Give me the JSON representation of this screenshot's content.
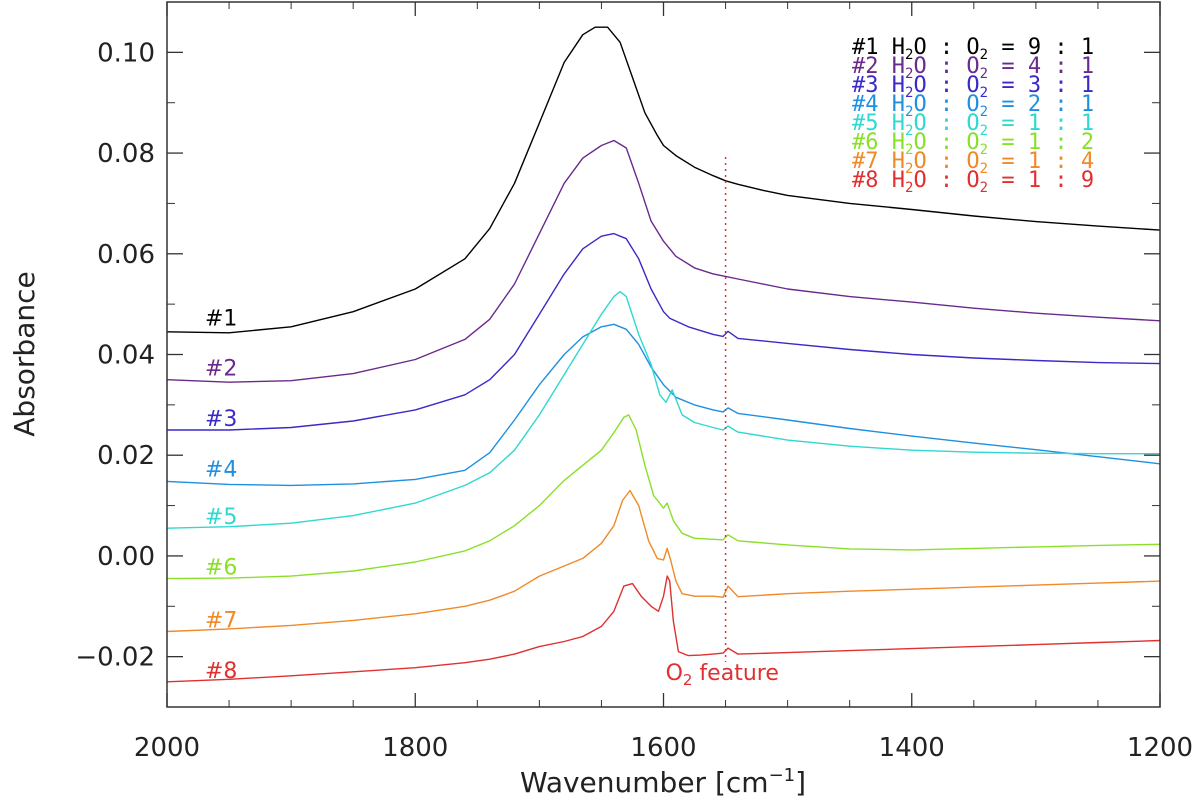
{
  "chart_data": {
    "type": "line",
    "title": "",
    "xlabel": "Wavenumber [cm",
    "xlabel_sup": "−1",
    "xlabel_close": "]",
    "ylabel": "Absorbance",
    "xlim": [
      2000,
      1200
    ],
    "ylim": [
      -0.03,
      0.11
    ],
    "xticks": [
      {
        "value": 2000,
        "label": "2000"
      },
      {
        "value": 1800,
        "label": "1800"
      },
      {
        "value": 1600,
        "label": "1600"
      },
      {
        "value": 1400,
        "label": "1400"
      },
      {
        "value": 1200,
        "label": "1200"
      }
    ],
    "yticks": [
      {
        "value": -0.02,
        "label": "−0.02"
      },
      {
        "value": 0.0,
        "label": "0.00"
      },
      {
        "value": 0.02,
        "label": "0.02"
      },
      {
        "value": 0.04,
        "label": "0.04"
      },
      {
        "value": 0.06,
        "label": "0.06"
      },
      {
        "value": 0.08,
        "label": "0.08"
      },
      {
        "value": 0.1,
        "label": "0.10"
      }
    ],
    "legend_position": "top-right",
    "annotation": {
      "text_prefix": "O",
      "text_sub": "2",
      "text_suffix": " feature",
      "x": 1550,
      "color": "#e03030"
    },
    "series": [
      {
        "name": "#1",
        "ratio_a": "9",
        "ratio_b": "1",
        "color": "#000000",
        "label_y": 0.045,
        "x": [
          2000,
          1950,
          1900,
          1850,
          1800,
          1760,
          1740,
          1720,
          1700,
          1680,
          1665,
          1655,
          1645,
          1635,
          1625,
          1615,
          1605,
          1600,
          1590,
          1575,
          1560,
          1550,
          1540,
          1520,
          1500,
          1450,
          1400,
          1350,
          1300,
          1250,
          1200
        ],
        "y": [
          0.0445,
          0.0443,
          0.0455,
          0.0485,
          0.053,
          0.059,
          0.065,
          0.074,
          0.086,
          0.098,
          0.1035,
          0.105,
          0.105,
          0.102,
          0.095,
          0.088,
          0.0835,
          0.0815,
          0.0795,
          0.0772,
          0.0755,
          0.0745,
          0.0738,
          0.0726,
          0.0716,
          0.07,
          0.0688,
          0.0675,
          0.0664,
          0.0655,
          0.0647
        ]
      },
      {
        "name": "#2",
        "ratio_a": "4",
        "ratio_b": "1",
        "color": "#6a2a8c",
        "label_y": 0.035,
        "x": [
          2000,
          1950,
          1900,
          1850,
          1800,
          1760,
          1740,
          1720,
          1700,
          1680,
          1665,
          1650,
          1640,
          1630,
          1620,
          1610,
          1605,
          1600,
          1590,
          1575,
          1560,
          1550,
          1540,
          1500,
          1450,
          1400,
          1350,
          1300,
          1250,
          1200
        ],
        "y": [
          0.035,
          0.0345,
          0.0348,
          0.0362,
          0.039,
          0.043,
          0.047,
          0.054,
          0.064,
          0.074,
          0.079,
          0.0815,
          0.0825,
          0.081,
          0.074,
          0.0665,
          0.0645,
          0.0625,
          0.0595,
          0.0572,
          0.056,
          0.0555,
          0.055,
          0.053,
          0.0515,
          0.0504,
          0.0492,
          0.0482,
          0.0474,
          0.0467
        ]
      },
      {
        "name": "#3",
        "ratio_a": "3",
        "ratio_b": "1",
        "color": "#3a2ac8",
        "label_y": 0.025,
        "x": [
          2000,
          1950,
          1900,
          1850,
          1800,
          1760,
          1740,
          1720,
          1700,
          1680,
          1665,
          1650,
          1640,
          1630,
          1620,
          1610,
          1600,
          1595,
          1580,
          1560,
          1552,
          1548,
          1540,
          1500,
          1450,
          1400,
          1350,
          1300,
          1250,
          1200
        ],
        "y": [
          0.025,
          0.025,
          0.0255,
          0.0268,
          0.029,
          0.032,
          0.035,
          0.04,
          0.048,
          0.056,
          0.061,
          0.0635,
          0.064,
          0.063,
          0.059,
          0.053,
          0.0485,
          0.0472,
          0.0455,
          0.044,
          0.0436,
          0.0446,
          0.0432,
          0.0422,
          0.041,
          0.04,
          0.0393,
          0.0388,
          0.0384,
          0.0382
        ]
      },
      {
        "name": "#4",
        "ratio_a": "2",
        "ratio_b": "1",
        "color": "#1f90e0",
        "label_y": 0.015,
        "x": [
          2000,
          1950,
          1900,
          1850,
          1800,
          1760,
          1740,
          1720,
          1700,
          1680,
          1665,
          1650,
          1640,
          1630,
          1620,
          1610,
          1600,
          1590,
          1575,
          1560,
          1552,
          1548,
          1540,
          1500,
          1450,
          1400,
          1350,
          1300,
          1250,
          1200
        ],
        "y": [
          0.0148,
          0.0142,
          0.014,
          0.0143,
          0.0152,
          0.017,
          0.0205,
          0.027,
          0.034,
          0.04,
          0.0435,
          0.0455,
          0.046,
          0.045,
          0.042,
          0.0375,
          0.034,
          0.0315,
          0.03,
          0.029,
          0.0286,
          0.0294,
          0.0283,
          0.027,
          0.0253,
          0.0238,
          0.0224,
          0.0211,
          0.0197,
          0.0183
        ]
      },
      {
        "name": "#5",
        "ratio_a": "1",
        "ratio_b": "1",
        "color": "#2fd8d0",
        "label_y": 0.0055,
        "x": [
          2000,
          1950,
          1900,
          1850,
          1800,
          1760,
          1740,
          1720,
          1700,
          1680,
          1665,
          1650,
          1640,
          1635,
          1630,
          1620,
          1610,
          1603,
          1598,
          1593,
          1585,
          1575,
          1560,
          1552,
          1548,
          1540,
          1500,
          1450,
          1400,
          1350,
          1300,
          1250,
          1200
        ],
        "y": [
          0.0055,
          0.0058,
          0.0065,
          0.008,
          0.0105,
          0.014,
          0.0165,
          0.021,
          0.028,
          0.036,
          0.042,
          0.048,
          0.0515,
          0.0525,
          0.0515,
          0.044,
          0.038,
          0.032,
          0.0305,
          0.033,
          0.028,
          0.0265,
          0.0255,
          0.025,
          0.0258,
          0.0246,
          0.023,
          0.0218,
          0.021,
          0.0206,
          0.0204,
          0.0203,
          0.0203
        ]
      },
      {
        "name": "#6",
        "ratio_a": "1",
        "ratio_b": "2",
        "color": "#8ae028",
        "label_y": -0.0045,
        "x": [
          2000,
          1950,
          1900,
          1850,
          1800,
          1760,
          1740,
          1720,
          1700,
          1680,
          1665,
          1650,
          1640,
          1632,
          1628,
          1622,
          1615,
          1608,
          1600,
          1597,
          1592,
          1585,
          1575,
          1560,
          1552,
          1548,
          1540,
          1500,
          1450,
          1400,
          1350,
          1300,
          1250,
          1200
        ],
        "y": [
          -0.0045,
          -0.0044,
          -0.004,
          -0.003,
          -0.0012,
          0.001,
          0.003,
          0.006,
          0.01,
          0.015,
          0.018,
          0.021,
          0.0245,
          0.0275,
          0.028,
          0.025,
          0.018,
          0.012,
          0.0095,
          0.0105,
          0.007,
          0.0045,
          0.0035,
          0.0033,
          0.0032,
          0.0042,
          0.003,
          0.0022,
          0.0014,
          0.0012,
          0.0015,
          0.0018,
          0.0021,
          0.0023
        ]
      },
      {
        "name": "#7",
        "ratio_a": "1",
        "ratio_b": "4",
        "color": "#f08a28",
        "label_y": -0.015,
        "x": [
          2000,
          1950,
          1900,
          1850,
          1800,
          1760,
          1740,
          1720,
          1700,
          1680,
          1665,
          1650,
          1640,
          1633,
          1627,
          1620,
          1612,
          1605,
          1600,
          1597,
          1594,
          1590,
          1585,
          1575,
          1560,
          1552,
          1548,
          1540,
          1500,
          1450,
          1400,
          1350,
          1300,
          1250,
          1200
        ],
        "y": [
          -0.015,
          -0.0145,
          -0.0138,
          -0.0128,
          -0.0115,
          -0.01,
          -0.0088,
          -0.007,
          -0.004,
          -0.002,
          -0.0005,
          0.0025,
          0.006,
          0.011,
          0.013,
          0.01,
          0.003,
          -0.0005,
          -0.0008,
          0.0015,
          -0.001,
          -0.005,
          -0.0075,
          -0.008,
          -0.008,
          -0.0082,
          -0.006,
          -0.0081,
          -0.0075,
          -0.007,
          -0.0066,
          -0.0062,
          -0.0058,
          -0.0054,
          -0.005
        ]
      },
      {
        "name": "#8",
        "ratio_a": "1",
        "ratio_b": "9",
        "color": "#e03030",
        "label_y": -0.025,
        "x": [
          2000,
          1950,
          1900,
          1850,
          1800,
          1760,
          1740,
          1720,
          1700,
          1680,
          1665,
          1650,
          1640,
          1632,
          1625,
          1618,
          1610,
          1604,
          1600,
          1597,
          1595,
          1592,
          1588,
          1580,
          1570,
          1560,
          1552,
          1548,
          1540,
          1500,
          1450,
          1400,
          1350,
          1300,
          1250,
          1200
        ],
        "y": [
          -0.025,
          -0.0245,
          -0.0238,
          -0.023,
          -0.0222,
          -0.0212,
          -0.0205,
          -0.0195,
          -0.018,
          -0.017,
          -0.016,
          -0.014,
          -0.011,
          -0.006,
          -0.0055,
          -0.008,
          -0.01,
          -0.011,
          -0.008,
          -0.004,
          -0.005,
          -0.013,
          -0.019,
          -0.0198,
          -0.0197,
          -0.0195,
          -0.0193,
          -0.0183,
          -0.0195,
          -0.0192,
          -0.0188,
          -0.0184,
          -0.018,
          -0.0176,
          -0.0172,
          -0.0168
        ]
      }
    ],
    "legend": {
      "species_a": "H",
      "species_a_sub": "2",
      "species_a_tail": "O",
      "species_b": "O",
      "species_b_sub": "2",
      "sep1": ":",
      "eq": "=",
      "sep2": ":"
    }
  }
}
